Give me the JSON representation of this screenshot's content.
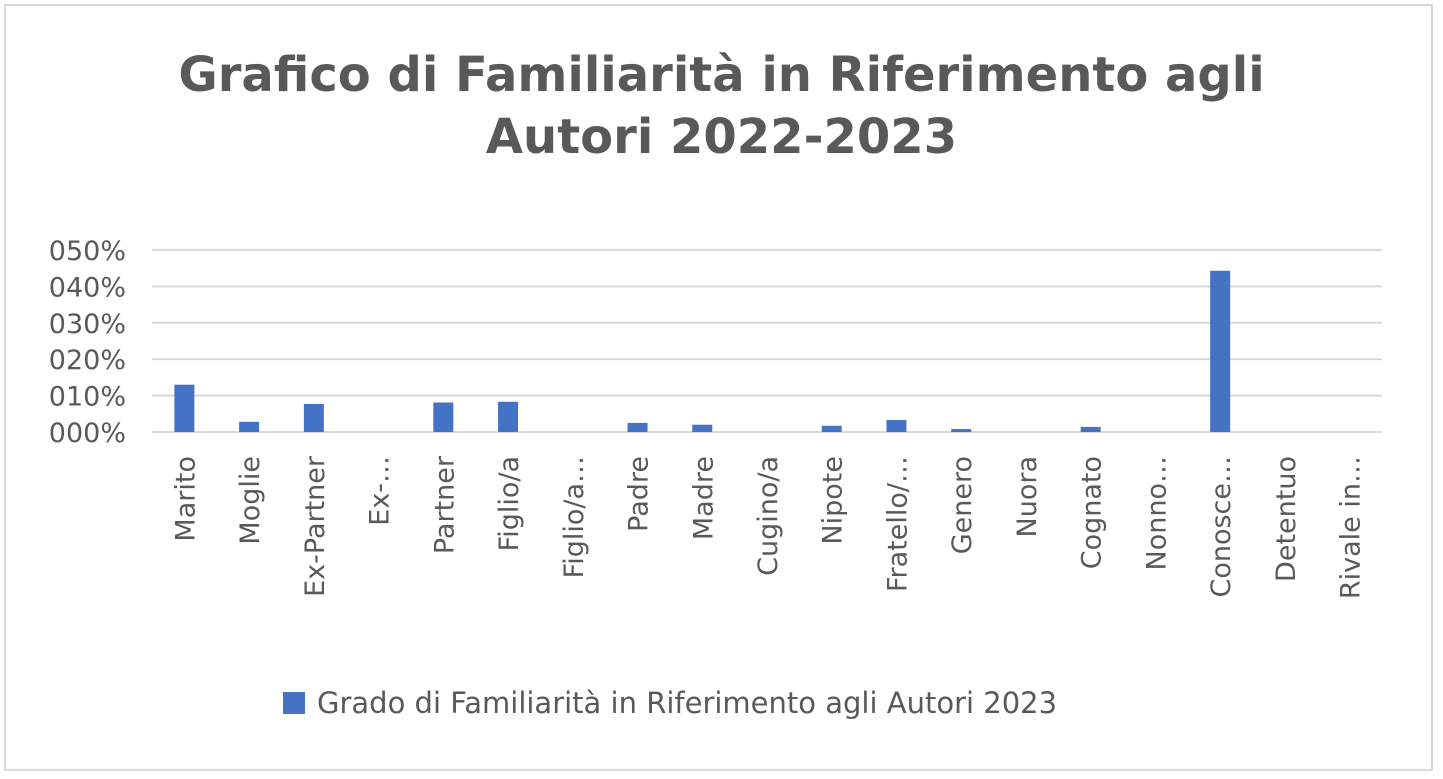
{
  "chart_data": {
    "type": "bar",
    "title_lines": [
      "Grafico di Familiarità in Riferimento agli",
      "Autori 2022-2023"
    ],
    "categories": [
      "Marito",
      "Moglie",
      "Ex-Partner",
      "Ex-…",
      "Partner",
      "Figlio/a",
      "Figlio/a…",
      "Padre",
      "Madre",
      "Cugino/a",
      "Nipote",
      "Fratello/…",
      "Genero",
      "Nuora",
      "Cognato",
      "Nonno…",
      "Conosce…",
      "Detentuo",
      "Rivale in…"
    ],
    "series": [
      {
        "name": "Grado di Familiarità in Riferimento agli Autori 2023",
        "color": "#4472C4",
        "values": [
          0.13,
          0.028,
          0.077,
          0,
          0.081,
          0.083,
          0,
          0.025,
          0.02,
          0,
          0.017,
          0.033,
          0.008,
          0,
          0.014,
          0,
          0.443,
          0,
          0
        ]
      }
    ],
    "y_ticks": [
      "000%",
      "010%",
      "020%",
      "030%",
      "040%",
      "050%"
    ],
    "ylim": [
      0,
      0.5
    ],
    "grid": true,
    "legend_position": "bottom"
  }
}
